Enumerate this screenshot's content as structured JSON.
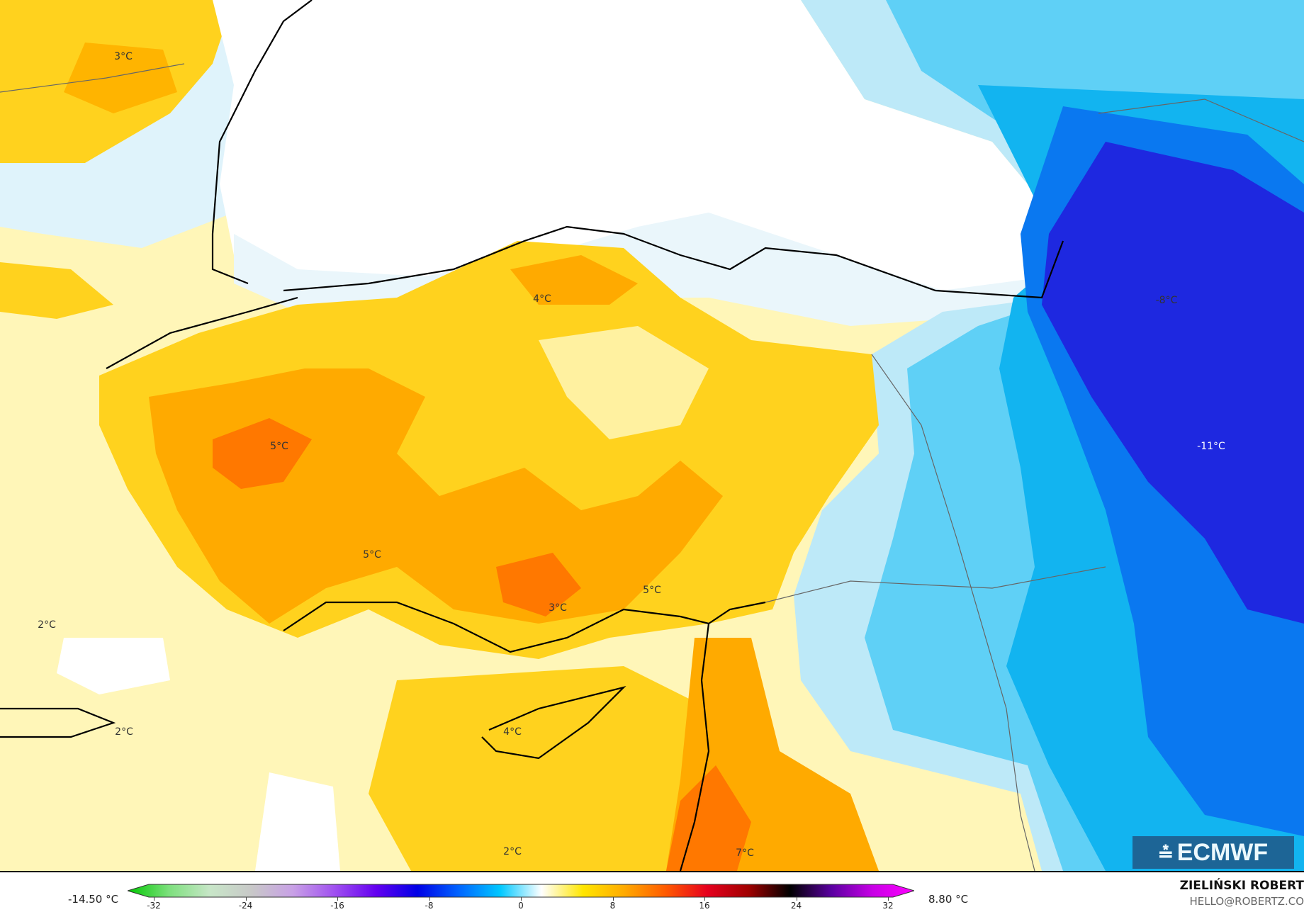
{
  "map": {
    "labels": [
      {
        "text": "3°C"
      },
      {
        "text": "4°C"
      },
      {
        "text": "5°C"
      },
      {
        "text": "5°C"
      },
      {
        "text": "3°C"
      },
      {
        "text": "5°C"
      },
      {
        "text": "2°C"
      },
      {
        "text": "2°C"
      },
      {
        "text": "4°C"
      },
      {
        "text": "2°C"
      },
      {
        "text": "7°C"
      },
      {
        "text": "-8°C"
      },
      {
        "text": "-11°C"
      }
    ]
  },
  "legend": {
    "min_label": "-14.50 °C",
    "max_label": "8.80 °C",
    "ticks": [
      "-32",
      "-24",
      "-16",
      "-8",
      "0",
      "8",
      "16",
      "24",
      "32"
    ],
    "colors": [
      "#00c800",
      "#7de07d",
      "#c8e6c8",
      "#c8c8c8",
      "#c8a0e6",
      "#a050f0",
      "#6400f0",
      "#0000e6",
      "#0064ff",
      "#00c8ff",
      "#ffffff",
      "#ffe600",
      "#ffaa00",
      "#ff5a00",
      "#e6001e",
      "#a00000",
      "#000000",
      "#5a00a0",
      "#c800e6",
      "#ff00ff"
    ]
  },
  "branding": {
    "logo_text": "ECMWF",
    "author": "ZIELIŃSKI ROBERT",
    "email": "HELLO@ROBERTZ.CO"
  }
}
